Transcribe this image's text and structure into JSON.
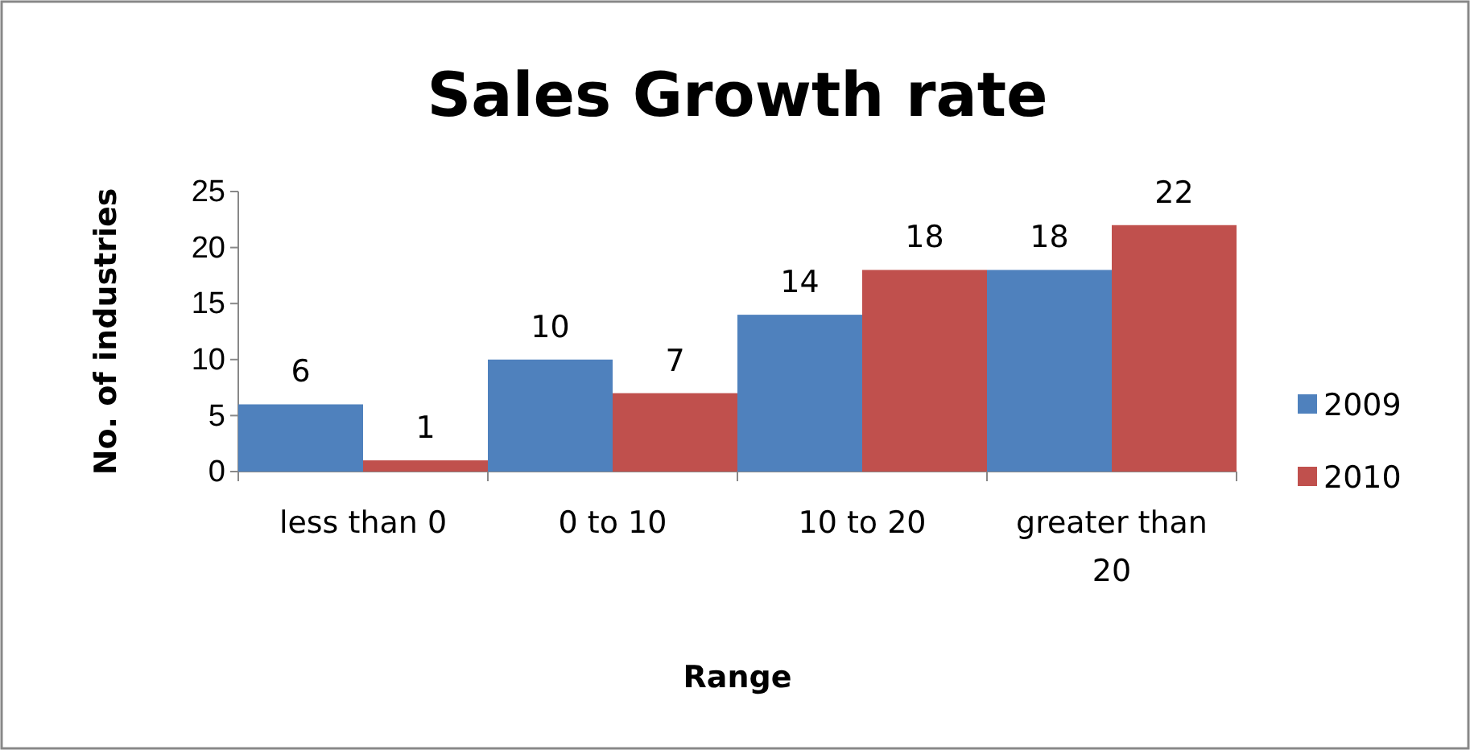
{
  "chart_data": {
    "type": "bar",
    "title": "Sales Growth rate",
    "xlabel": "Range",
    "ylabel": "No. of industries",
    "categories": [
      "less than 0",
      "0 to 10",
      "10 to 20",
      "greater than 20"
    ],
    "series": [
      {
        "name": "2009",
        "color": "#4f81bd",
        "values": [
          6,
          10,
          14,
          18
        ]
      },
      {
        "name": "2010",
        "color": "#c0504d",
        "values": [
          1,
          7,
          18,
          22
        ]
      }
    ],
    "ylim": [
      0,
      25
    ],
    "yticks": [
      0,
      5,
      10,
      15,
      20,
      25
    ],
    "grid": false,
    "legend": "right",
    "data_labels": true
  }
}
